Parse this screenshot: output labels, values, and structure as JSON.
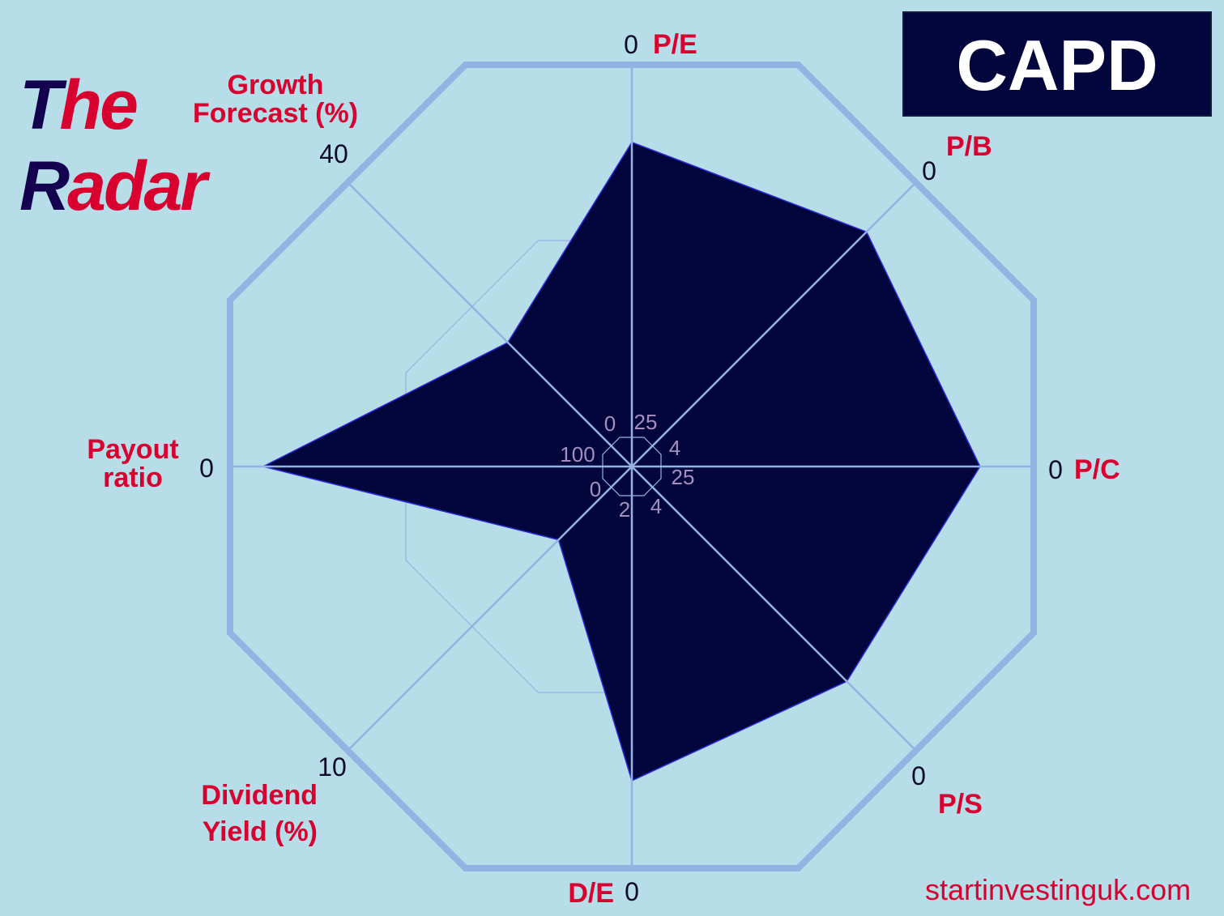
{
  "brand": {
    "the_first": "T",
    "the_rest": "he",
    "radar_first": "R",
    "radar_rest": "adar"
  },
  "ticker": "CAPD",
  "website": "startinvestinguk.com",
  "colors": {
    "background": "#b6dde8",
    "fill": "#03063c",
    "grid": "#93b4e3",
    "label": "#d8002f",
    "brand_dark": "#13004f"
  },
  "chart_data": {
    "type": "radar",
    "grid": true,
    "axes": [
      {
        "label": [
          "P/E"
        ],
        "inner": 25,
        "outer": 0,
        "value": 5.2
      },
      {
        "label": [
          "P/B"
        ],
        "inner": 4,
        "outer": 0,
        "value": 0.75
      },
      {
        "label": [
          "P/C"
        ],
        "inner": 25,
        "outer": 0,
        "value": 3.6
      },
      {
        "label": [
          "P/S"
        ],
        "inner": 4,
        "outer": 0,
        "value": 1.05
      },
      {
        "label": [
          "D/E"
        ],
        "inner": 2,
        "outer": 0,
        "value": 0.47
      },
      {
        "label": [
          "Dividend",
          "Yield (%)"
        ],
        "inner": 0,
        "outer": 10,
        "value": 2.0
      },
      {
        "label": [
          "Payout",
          "ratio"
        ],
        "inner": 100,
        "outer": 0,
        "value": 8.9
      },
      {
        "label": [
          "Growth",
          "Forecast (%)"
        ],
        "inner": 0,
        "outer": 40,
        "value": 15.7
      }
    ]
  }
}
